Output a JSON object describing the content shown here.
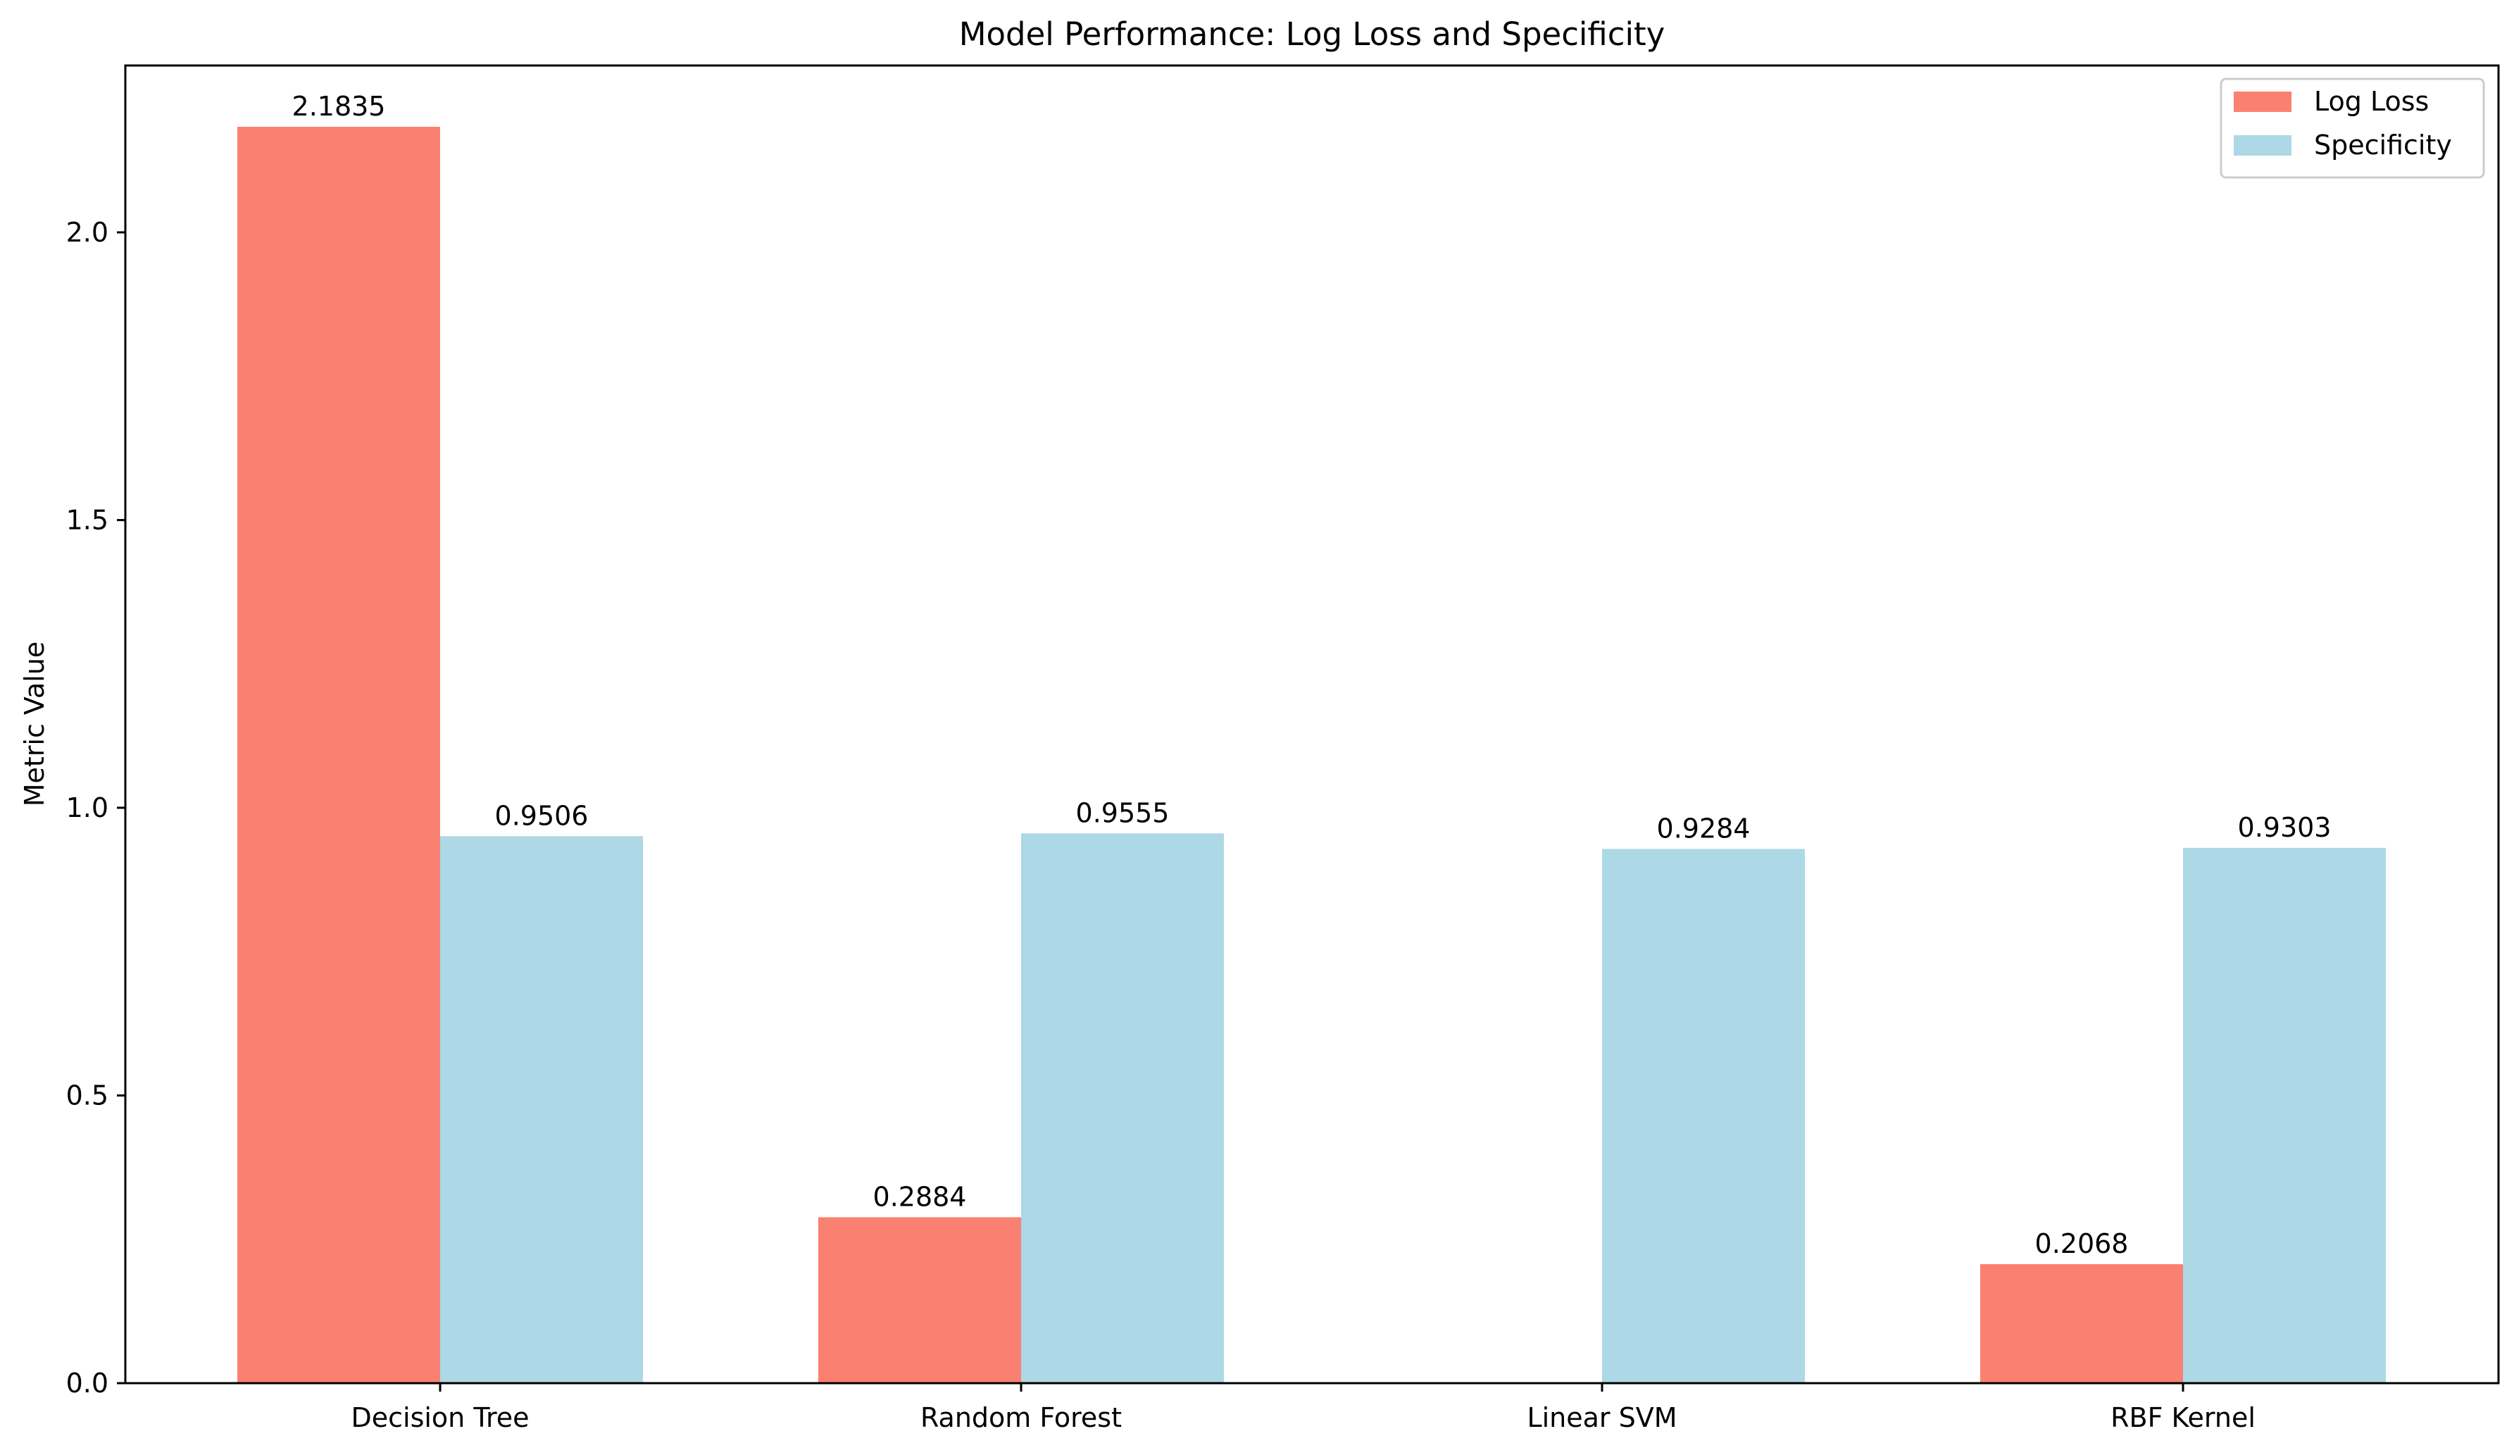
{
  "chart_data": {
    "type": "bar",
    "title": "Model Performance: Log Loss and Specificity",
    "xlabel": "",
    "ylabel": "Metric Value",
    "categories": [
      "Decision Tree",
      "Random Forest",
      "Linear SVM",
      "RBF Kernel"
    ],
    "series": [
      {
        "name": "Log Loss",
        "color": "#fa8072",
        "values": [
          2.1835,
          0.2884,
          null,
          0.2068
        ],
        "labels": [
          "2.1835",
          "0.2884",
          "",
          "0.2068"
        ]
      },
      {
        "name": "Specificity",
        "color": "#add8e6",
        "values": [
          0.9506,
          0.9555,
          0.9284,
          0.9303
        ],
        "labels": [
          "0.9506",
          "0.9555",
          "0.9284",
          "0.9303"
        ]
      }
    ],
    "ylim": [
      0,
      2.29
    ],
    "yticks": [
      0.0,
      0.5,
      1.0,
      1.5,
      2.0
    ],
    "ytick_labels": [
      "0.0",
      "0.5",
      "1.0",
      "1.5",
      "2.0"
    ],
    "grid": false,
    "legend_position": "top-right"
  }
}
